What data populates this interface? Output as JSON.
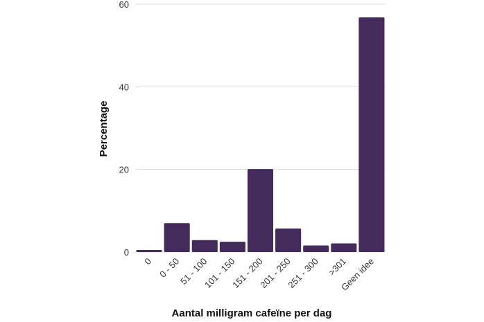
{
  "chart_data": {
    "type": "bar",
    "title": "",
    "xlabel": "Aantal milligram cafeïne per dag",
    "ylabel": "Percentage",
    "categories": [
      "0",
      "0 - 50",
      "51 - 100",
      "101 - 150",
      "151 - 200",
      "201 - 250",
      "251 - 300",
      ">301",
      "Geen idee"
    ],
    "values": [
      0.5,
      7.0,
      2.9,
      2.5,
      20.1,
      5.7,
      1.6,
      2.1,
      56.8
    ],
    "ylim": [
      0,
      60
    ],
    "yticks": [
      0,
      20,
      40,
      60
    ],
    "grid": true,
    "bar_color": "#432c5c",
    "grid_color": "#dddddd"
  }
}
